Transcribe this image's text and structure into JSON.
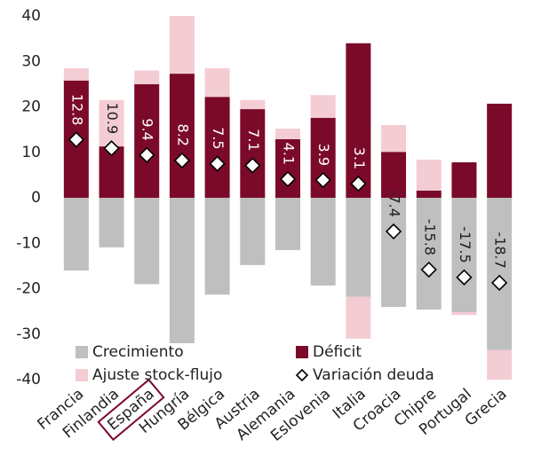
{
  "chart_data": {
    "type": "bar",
    "stacked": true,
    "categories": [
      "Francia",
      "Finlandia",
      "España",
      "Hungría",
      "Bélgica",
      "Austria",
      "Alemania",
      "Eslovenia",
      "Italia",
      "Croacia",
      "Chipre",
      "Portugal",
      "Grecia"
    ],
    "series": [
      {
        "name": "Crecimiento",
        "color": "#bfbfbf",
        "values": [
          -16,
          -10.9,
          -19,
          -32,
          -21.3,
          -14.8,
          -11.5,
          -19.3,
          -21.8,
          -24,
          -24.6,
          -25.2,
          -33.5
        ]
      },
      {
        "name": "Déficit",
        "color": "#7b0a2a",
        "values": [
          25.8,
          11.3,
          25,
          27.3,
          22.2,
          19.5,
          12.9,
          17.6,
          34,
          10.1,
          1.6,
          7.8,
          20.7
        ]
      },
      {
        "name": "Ajuste stock-flujo",
        "color": "#f4ccd4",
        "values": [
          2.7,
          10.2,
          3,
          12.7,
          6.3,
          2,
          2.3,
          5,
          -9.2,
          5.9,
          6.8,
          -0.6,
          -6.5
        ]
      },
      {
        "name": "Variación deuda",
        "type": "scatter",
        "color": "#ffffff",
        "values": [
          12.8,
          10.9,
          9.4,
          8.2,
          7.5,
          7.1,
          4.1,
          3.9,
          3.1,
          -7.4,
          -15.8,
          -17.5,
          -18.7
        ]
      }
    ],
    "highlight_category": "España",
    "legend": "lower left",
    "ylim": [
      -40,
      40
    ],
    "yticks": [
      -40,
      -30,
      -20,
      -10,
      0,
      10,
      20,
      30,
      40
    ]
  }
}
